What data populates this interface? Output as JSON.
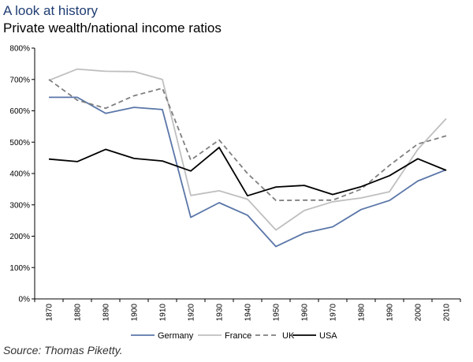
{
  "header": {
    "title": "A look at history",
    "subtitle": "Private wealth/national income ratios"
  },
  "footer": {
    "source": "Source: Thomas Piketty."
  },
  "chart_data": {
    "type": "line",
    "x": [
      "1870",
      "1880",
      "1890",
      "1900",
      "1910",
      "1920",
      "1930",
      "1940",
      "1950",
      "1960",
      "1970",
      "1980",
      "1990",
      "2000",
      "2010"
    ],
    "y_tick_labels": [
      "0%",
      "100%",
      "200%",
      "300%",
      "400%",
      "500%",
      "600%",
      "700%",
      "800%"
    ],
    "ylim": [
      0,
      800
    ],
    "grid": false,
    "legend_position": "bottom",
    "series": [
      {
        "name": "Germany",
        "color": "#5a76a8",
        "dash": "solid",
        "values": [
          643,
          643,
          592,
          611,
          604,
          260,
          307,
          267,
          167,
          210,
          230,
          285,
          314,
          376,
          412
        ]
      },
      {
        "name": "France",
        "color": "#bfbfbf",
        "dash": "solid",
        "values": [
          697,
          733,
          726,
          725,
          700,
          330,
          345,
          318,
          220,
          282,
          310,
          322,
          342,
          477,
          575
        ]
      },
      {
        "name": "UK",
        "color": "#7f7f7f",
        "dash": "dashed",
        "values": [
          700,
          634,
          608,
          648,
          672,
          443,
          507,
          400,
          314,
          315,
          315,
          350,
          426,
          494,
          520
        ]
      },
      {
        "name": "USA",
        "color": "#000000",
        "dash": "solid",
        "values": [
          446,
          438,
          477,
          448,
          440,
          408,
          483,
          329,
          357,
          362,
          333,
          358,
          393,
          447,
          410
        ]
      }
    ]
  }
}
